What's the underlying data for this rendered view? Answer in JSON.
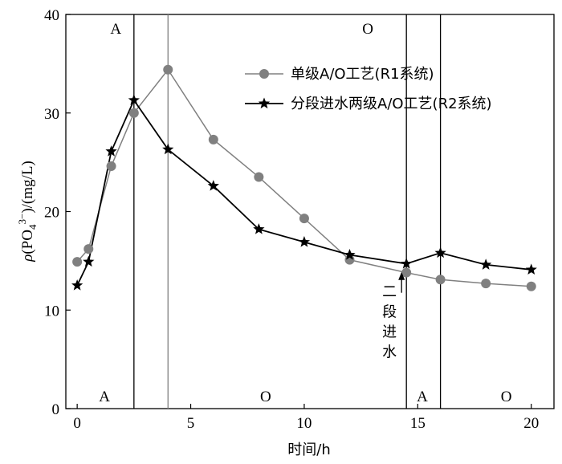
{
  "chart_data": {
    "type": "line",
    "title": "",
    "xlabel": "时间/h",
    "ylabel": "ρ(PO4 3−)/(mg/L)",
    "ylabel_parts": {
      "rho": "ρ",
      "open": "(PO",
      "sub": "4",
      "sup": "3−",
      "close": ")/(mg/L)"
    },
    "xlim": [
      -0.5,
      21
    ],
    "ylim": [
      0,
      40
    ],
    "xticks": [
      0,
      5,
      10,
      15,
      20
    ],
    "yticks": [
      0,
      10,
      20,
      30,
      40
    ],
    "grid": false,
    "legend_position": "top-right",
    "series": [
      {
        "name": "单级A/O工艺(R1系统)",
        "color": "#808080",
        "marker": "circle",
        "x": [
          0,
          0.5,
          1.5,
          2.5,
          4,
          6,
          8,
          10,
          12,
          14.5,
          16,
          18,
          20
        ],
        "y": [
          14.9,
          16.2,
          24.6,
          30.0,
          34.4,
          27.3,
          23.5,
          19.3,
          15.1,
          13.8,
          13.1,
          12.7,
          12.4
        ]
      },
      {
        "name": "分段进水两级A/O工艺(R2系统)",
        "color": "#000000",
        "marker": "star",
        "x": [
          0,
          0.5,
          1.5,
          2.5,
          4,
          6,
          8,
          10,
          12,
          14.5,
          16,
          18,
          20
        ],
        "y": [
          12.5,
          14.9,
          26.1,
          31.3,
          26.3,
          22.6,
          18.2,
          16.9,
          15.6,
          14.7,
          15.8,
          14.6,
          14.1
        ]
      }
    ],
    "vlines": [
      {
        "x": 2.5,
        "color": "#000000"
      },
      {
        "x": 4,
        "color": "#808080"
      },
      {
        "x": 14.5,
        "color": "#000000"
      },
      {
        "x": 16,
        "color": "#000000"
      }
    ],
    "phase_labels_top": [
      {
        "text": "A",
        "x": 1.7
      },
      {
        "text": "O",
        "x": 12.8
      }
    ],
    "phase_labels_bottom": [
      {
        "text": "A",
        "x": 1.2
      },
      {
        "text": "O",
        "x": 8.3
      },
      {
        "text": "A",
        "x": 15.2
      },
      {
        "text": "O",
        "x": 18.9
      }
    ],
    "annotations": [
      {
        "text": "二段进水",
        "x": 14.5,
        "y": 14.2
      }
    ]
  }
}
